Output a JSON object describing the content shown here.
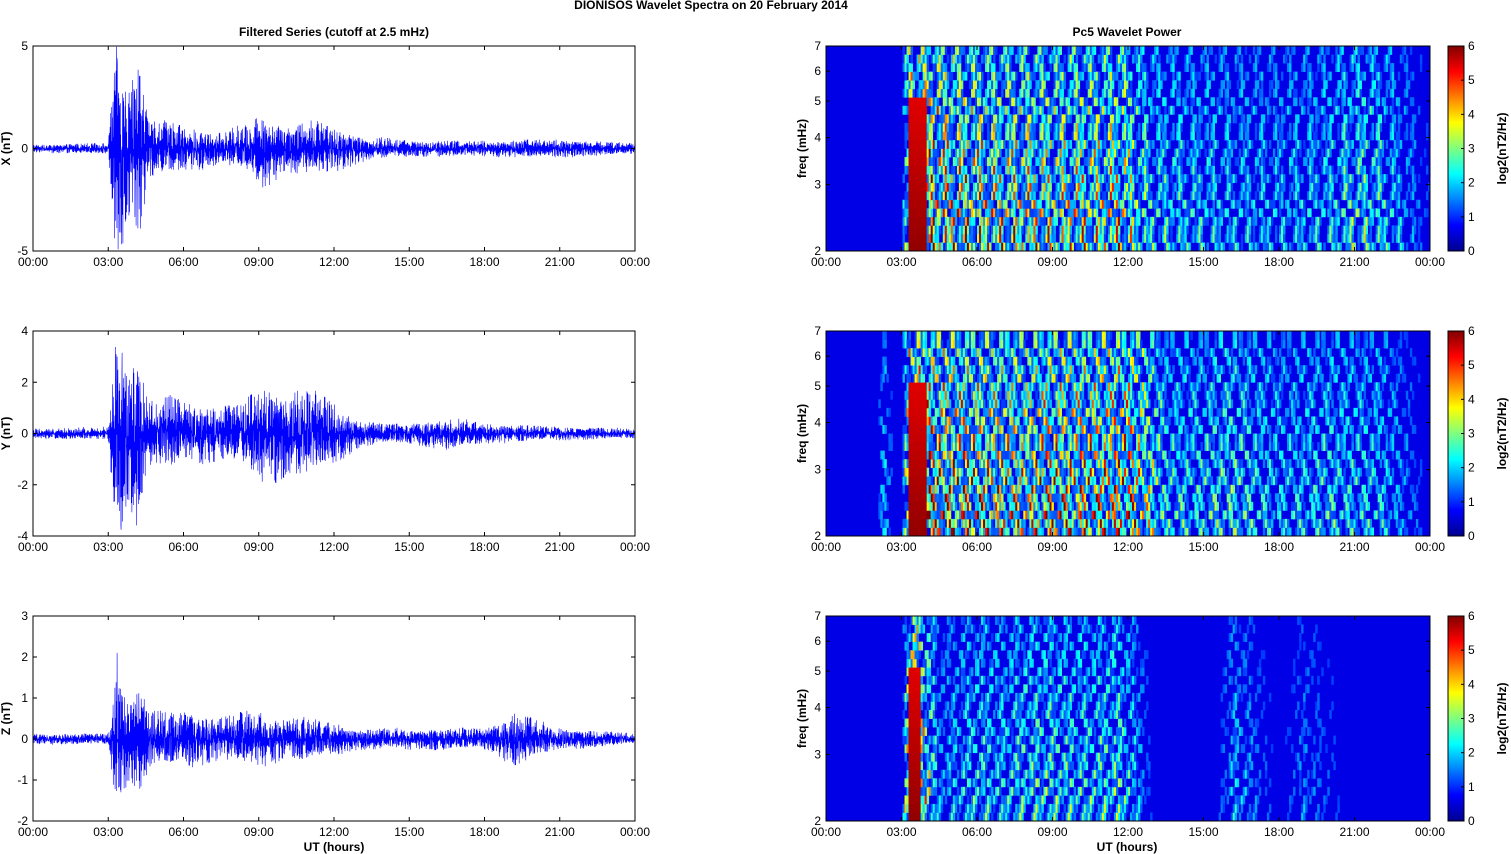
{
  "figure": {
    "suptitle": "DIONISOS Wavelet Spectra on 20 February  2014",
    "left_title": "Filtered Series (cutoff at 2.5 mHz)",
    "right_title": "Pc5 Wavelet Power",
    "xlabel": "UT (hours)",
    "freq_label": "freq (mHz)",
    "cbar_label": "log2(nT2/Hz)"
  },
  "colors": {
    "series_line": "#0000ff",
    "colormap": "jet",
    "axis": "#000000",
    "background": "#ffffff"
  },
  "chart_data": [
    {
      "type": "line",
      "component": "X",
      "ylabel": "X (nT)",
      "xlim": [
        0,
        24
      ],
      "ylim": [
        -5,
        5
      ],
      "yticks": [
        "-5",
        "0",
        "5"
      ],
      "xticks": [
        "00:00",
        "03:00",
        "06:00",
        "09:00",
        "12:00",
        "15:00",
        "18:00",
        "21:00",
        "00:00"
      ],
      "envelope": {
        "x": [
          0,
          3.0,
          3.3,
          3.5,
          3.8,
          4.2,
          4.6,
          5.5,
          6.5,
          7.5,
          8.5,
          9.2,
          10,
          11,
          12,
          13,
          14,
          15,
          18,
          21,
          24
        ],
        "amplitude": [
          0.15,
          0.2,
          4.2,
          3.8,
          2.5,
          3.5,
          1.2,
          0.9,
          0.8,
          0.6,
          0.9,
          1.5,
          0.9,
          1.0,
          0.9,
          0.5,
          0.4,
          0.3,
          0.3,
          0.35,
          0.2
        ]
      },
      "extremes": {
        "max": 4.4,
        "min": -4.1
      }
    },
    {
      "type": "line",
      "component": "Y",
      "ylabel": "Y (nT)",
      "xlim": [
        0,
        24
      ],
      "ylim": [
        -4,
        4
      ],
      "yticks": [
        "-4",
        "-2",
        "0",
        "2",
        "4"
      ],
      "xticks": [
        "00:00",
        "03:00",
        "06:00",
        "09:00",
        "12:00",
        "15:00",
        "18:00",
        "21:00",
        "00:00"
      ],
      "envelope": {
        "x": [
          0,
          3.0,
          3.3,
          3.5,
          3.8,
          4.2,
          4.6,
          5.5,
          6.5,
          7.5,
          8.5,
          9.2,
          10,
          11,
          12,
          13,
          14,
          15,
          16.5,
          18,
          21,
          24
        ],
        "amplitude": [
          0.15,
          0.2,
          3.0,
          3.0,
          2.0,
          2.8,
          1.0,
          1.1,
          0.9,
          0.8,
          1.0,
          1.5,
          1.3,
          1.3,
          0.9,
          0.4,
          0.3,
          0.3,
          0.5,
          0.3,
          0.2,
          0.15
        ]
      },
      "extremes": {
        "max": 3.0,
        "min": -3.6
      }
    },
    {
      "type": "line",
      "component": "Z",
      "ylabel": "Z (nT)",
      "xlim": [
        0,
        24
      ],
      "ylim": [
        -2,
        3
      ],
      "yticks": [
        "-2",
        "-1",
        "0",
        "1",
        "2",
        "3"
      ],
      "xticks": [
        "00:00",
        "03:00",
        "06:00",
        "09:00",
        "12:00",
        "15:00",
        "18:00",
        "21:00",
        "00:00"
      ],
      "envelope": {
        "x": [
          0,
          3.0,
          3.3,
          3.5,
          3.8,
          4.2,
          4.7,
          5.5,
          6.5,
          7.5,
          8.5,
          9.2,
          10,
          11,
          12,
          13,
          15,
          18,
          19.2,
          21,
          24
        ],
        "amplitude": [
          0.1,
          0.1,
          1.2,
          1.2,
          0.8,
          1.0,
          0.5,
          0.5,
          0.5,
          0.4,
          0.5,
          0.5,
          0.4,
          0.4,
          0.3,
          0.2,
          0.2,
          0.2,
          0.5,
          0.2,
          0.1
        ]
      },
      "extremes": {
        "max": 2.1,
        "min": -1.3
      }
    },
    {
      "type": "heatmap",
      "component": "X",
      "ylabel": "freq (mHz)",
      "yscale": "log",
      "ylim": [
        2,
        7
      ],
      "yticks": [
        "2",
        "3",
        "4",
        "5",
        "6",
        "7"
      ],
      "xlim": [
        0,
        24
      ],
      "xticks": [
        "00:00",
        "03:00",
        "06:00",
        "09:00",
        "12:00",
        "15:00",
        "18:00",
        "21:00",
        "00:00"
      ],
      "colorbar": {
        "label": "log2(nT2/Hz)",
        "range": [
          0,
          6
        ],
        "ticks": [
          "0",
          "1",
          "2",
          "3",
          "4",
          "5",
          "6"
        ]
      },
      "activity": {
        "x": [
          0,
          2.5,
          3.0,
          3.3,
          4.0,
          5.0,
          6.0,
          7.0,
          8.0,
          9.0,
          10.0,
          11.0,
          11.7,
          12.2,
          13.0,
          15.0,
          16.0,
          18.0,
          20.0,
          21.0,
          22.0,
          24.0
        ],
        "level": [
          0.05,
          0.2,
          0.3,
          6.0,
          5.8,
          5.0,
          4.8,
          4.5,
          4.6,
          4.2,
          4.5,
          4.3,
          4.8,
          3.5,
          2.5,
          2.2,
          2.0,
          1.8,
          2.2,
          3.0,
          2.6,
          0.5
        ]
      }
    },
    {
      "type": "heatmap",
      "component": "Y",
      "ylabel": "freq (mHz)",
      "yscale": "log",
      "ylim": [
        2,
        7
      ],
      "yticks": [
        "2",
        "3",
        "4",
        "5",
        "6",
        "7"
      ],
      "xlim": [
        0,
        24
      ],
      "xticks": [
        "00:00",
        "03:00",
        "06:00",
        "09:00",
        "12:00",
        "15:00",
        "18:00",
        "21:00",
        "00:00"
      ],
      "colorbar": {
        "label": "log2(nT2/Hz)",
        "range": [
          0,
          6
        ],
        "ticks": [
          "0",
          "1",
          "2",
          "3",
          "4",
          "5",
          "6"
        ]
      },
      "activity": {
        "x": [
          0,
          2.0,
          2.3,
          2.7,
          3.0,
          3.3,
          4.0,
          5.0,
          6.0,
          7.0,
          8.0,
          9.0,
          10.0,
          11.0,
          12.0,
          12.8,
          13.5,
          15.0,
          16.0,
          18.0,
          20.0,
          22.0,
          24.0
        ],
        "level": [
          0.05,
          0.1,
          2.0,
          0.3,
          0.3,
          6.0,
          6.0,
          5.6,
          5.3,
          5.0,
          4.8,
          5.5,
          5.2,
          5.5,
          5.6,
          4.0,
          2.5,
          2.5,
          3.0,
          2.0,
          2.5,
          2.2,
          0.3
        ]
      }
    },
    {
      "type": "heatmap",
      "component": "Z",
      "ylabel": "freq (mHz)",
      "yscale": "log",
      "ylim": [
        2,
        7
      ],
      "yticks": [
        "2",
        "3",
        "4",
        "5",
        "6",
        "7"
      ],
      "xlim": [
        0,
        24
      ],
      "xticks": [
        "00:00",
        "03:00",
        "06:00",
        "09:00",
        "12:00",
        "15:00",
        "18:00",
        "21:00",
        "00:00"
      ],
      "colorbar": {
        "label": "log2(nT2/Hz)",
        "range": [
          0,
          6
        ],
        "ticks": [
          "0",
          "1",
          "2",
          "3",
          "4",
          "5",
          "6"
        ]
      },
      "activity": {
        "x": [
          0,
          3.0,
          3.3,
          3.6,
          4.0,
          4.5,
          5.0,
          6.0,
          7.0,
          8.0,
          9.0,
          10.0,
          11.0,
          11.5,
          12.5,
          13.0,
          15.5,
          16.2,
          18.0,
          19.0,
          21.0,
          24.0
        ],
        "level": [
          0.0,
          0.05,
          5.5,
          6.0,
          4.0,
          1.5,
          1.8,
          2.5,
          2.2,
          2.8,
          2.8,
          2.5,
          2.6,
          3.0,
          1.5,
          0.3,
          0.3,
          1.8,
          0.3,
          1.2,
          0.2,
          0.1
        ]
      }
    }
  ]
}
